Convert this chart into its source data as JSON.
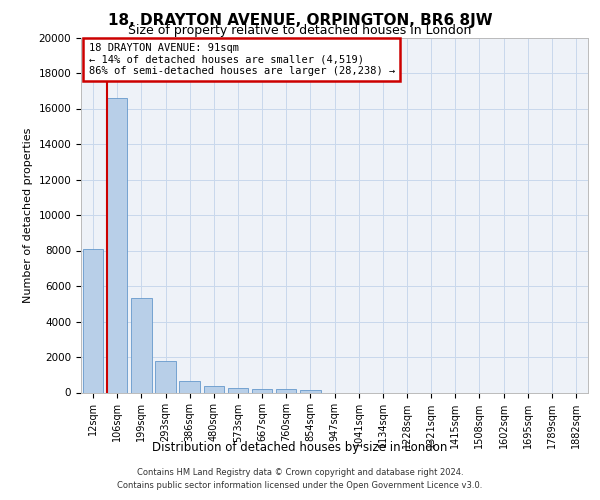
{
  "title": "18, DRAYTON AVENUE, ORPINGTON, BR6 8JW",
  "subtitle": "Size of property relative to detached houses in London",
  "xlabel": "Distribution of detached houses by size in London",
  "ylabel": "Number of detached properties",
  "footer_line1": "Contains HM Land Registry data © Crown copyright and database right 2024.",
  "footer_line2": "Contains public sector information licensed under the Open Government Licence v3.0.",
  "annotation_title": "18 DRAYTON AVENUE: 91sqm",
  "annotation_line1": "← 14% of detached houses are smaller (4,519)",
  "annotation_line2": "86% of semi-detached houses are larger (28,238) →",
  "bar_categories": [
    "12sqm",
    "106sqm",
    "199sqm",
    "293sqm",
    "386sqm",
    "480sqm",
    "573sqm",
    "667sqm",
    "760sqm",
    "854sqm",
    "947sqm",
    "1041sqm",
    "1134sqm",
    "1228sqm",
    "1321sqm",
    "1415sqm",
    "1508sqm",
    "1602sqm",
    "1695sqm",
    "1789sqm",
    "1882sqm"
  ],
  "bar_values": [
    8100,
    16600,
    5300,
    1750,
    650,
    350,
    280,
    220,
    180,
    160,
    0,
    0,
    0,
    0,
    0,
    0,
    0,
    0,
    0,
    0,
    0
  ],
  "bar_color": "#b8cfe8",
  "bar_edge_color": "#6699cc",
  "vline_color": "#cc0000",
  "vline_x_index": 1,
  "annotation_box_color": "#cc0000",
  "grid_color": "#c8d8ec",
  "background_color": "#eef2f8",
  "ylim": [
    0,
    20000
  ],
  "yticks": [
    0,
    2000,
    4000,
    6000,
    8000,
    10000,
    12000,
    14000,
    16000,
    18000,
    20000
  ],
  "title_fontsize": 11,
  "subtitle_fontsize": 9,
  "ylabel_fontsize": 8,
  "xlabel_fontsize": 8.5,
  "tick_fontsize": 7,
  "annotation_fontsize": 7.5,
  "footer_fontsize": 6
}
